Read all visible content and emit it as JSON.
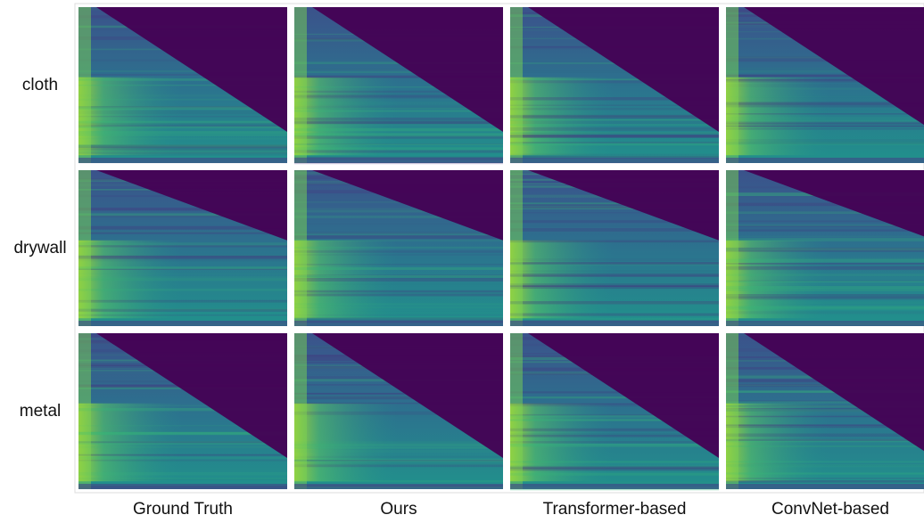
{
  "rows": [
    "cloth",
    "drywall",
    "metal"
  ],
  "columns": [
    "Ground Truth",
    "Ours",
    "Transformer-based",
    "ConvNet-based"
  ]
}
